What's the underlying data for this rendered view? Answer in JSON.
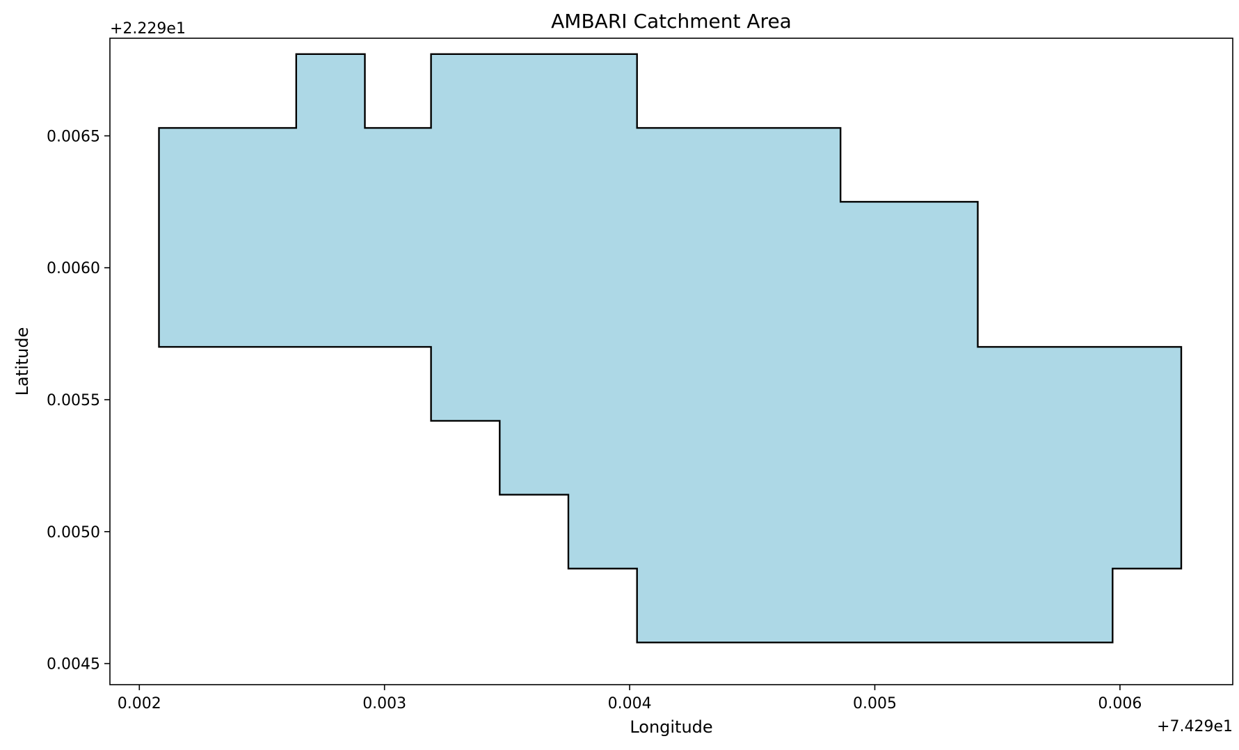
{
  "chart_data": {
    "type": "area",
    "title": "AMBARI Catchment Area",
    "xlabel": "Longitude",
    "ylabel": "Latitude",
    "x_offset_label": "+7.429e1",
    "y_offset_label": "+2.229e1",
    "xlim": [
      0.00188,
      0.00646
    ],
    "ylim": [
      0.00442,
      0.00687
    ],
    "x_ticks": [
      {
        "value": 0.002,
        "label": "0.002"
      },
      {
        "value": 0.003,
        "label": "0.003"
      },
      {
        "value": 0.004,
        "label": "0.004"
      },
      {
        "value": 0.005,
        "label": "0.005"
      },
      {
        "value": 0.006,
        "label": "0.006"
      }
    ],
    "y_ticks": [
      {
        "value": 0.0045,
        "label": "0.0045"
      },
      {
        "value": 0.005,
        "label": "0.0050"
      },
      {
        "value": 0.0055,
        "label": "0.0055"
      },
      {
        "value": 0.006,
        "label": "0.0060"
      },
      {
        "value": 0.0065,
        "label": "0.0065"
      }
    ],
    "grid": false,
    "colors": {
      "fill": "#add8e6",
      "edge": "#000000"
    },
    "polygon": [
      [
        0.00208,
        0.00653
      ],
      [
        0.00264,
        0.00653
      ],
      [
        0.00264,
        0.00681
      ],
      [
        0.00292,
        0.00681
      ],
      [
        0.00292,
        0.00653
      ],
      [
        0.00319,
        0.00653
      ],
      [
        0.00319,
        0.00681
      ],
      [
        0.00403,
        0.00681
      ],
      [
        0.00403,
        0.00653
      ],
      [
        0.00486,
        0.00653
      ],
      [
        0.00486,
        0.00625
      ],
      [
        0.00542,
        0.00625
      ],
      [
        0.00542,
        0.0057
      ],
      [
        0.00625,
        0.0057
      ],
      [
        0.00625,
        0.00486
      ],
      [
        0.00597,
        0.00486
      ],
      [
        0.00597,
        0.00458
      ],
      [
        0.00403,
        0.00458
      ],
      [
        0.00403,
        0.00486
      ],
      [
        0.00375,
        0.00486
      ],
      [
        0.00375,
        0.00514
      ],
      [
        0.00347,
        0.00514
      ],
      [
        0.00347,
        0.00542
      ],
      [
        0.00319,
        0.00542
      ],
      [
        0.00319,
        0.0057
      ],
      [
        0.00208,
        0.0057
      ]
    ]
  }
}
